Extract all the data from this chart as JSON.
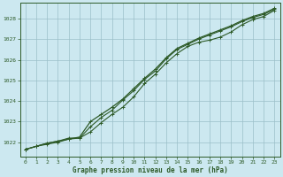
{
  "title": "Graphe pression niveau de la mer (hPa)",
  "background_color": "#cce8f0",
  "plot_bg_color": "#cce8f0",
  "grid_color": "#9bbfc8",
  "line_color": "#2d5a27",
  "marker_color": "#2d5a27",
  "tick_color": "#2d5a27",
  "hours": [
    0,
    1,
    2,
    3,
    4,
    5,
    6,
    7,
    8,
    9,
    10,
    11,
    12,
    13,
    14,
    15,
    16,
    17,
    18,
    19,
    20,
    21,
    22,
    23
  ],
  "line1": [
    1021.65,
    1021.8,
    1021.9,
    1022.0,
    1022.15,
    1022.2,
    1022.5,
    1022.95,
    1023.35,
    1023.7,
    1024.2,
    1024.85,
    1025.3,
    1025.85,
    1026.3,
    1026.65,
    1026.85,
    1026.95,
    1027.1,
    1027.35,
    1027.7,
    1027.95,
    1028.1,
    1028.4
  ],
  "line2": [
    1021.65,
    1021.8,
    1021.95,
    1022.05,
    1022.2,
    1022.2,
    1022.75,
    1023.2,
    1023.55,
    1024.05,
    1024.5,
    1025.05,
    1025.45,
    1026.05,
    1026.5,
    1026.75,
    1027.0,
    1027.2,
    1027.4,
    1027.6,
    1027.85,
    1028.05,
    1028.2,
    1028.45
  ],
  "line3": [
    1021.65,
    1021.8,
    1021.95,
    1022.05,
    1022.15,
    1022.25,
    1023.0,
    1023.35,
    1023.7,
    1024.1,
    1024.6,
    1025.1,
    1025.55,
    1026.1,
    1026.55,
    1026.8,
    1027.05,
    1027.25,
    1027.45,
    1027.65,
    1027.9,
    1028.1,
    1028.25,
    1028.5
  ],
  "ylim": [
    1021.3,
    1028.75
  ],
  "yticks": [
    1022,
    1023,
    1024,
    1025,
    1026,
    1027,
    1028
  ],
  "xlim": [
    -0.5,
    23.5
  ],
  "xticks": [
    0,
    1,
    2,
    3,
    4,
    5,
    6,
    7,
    8,
    9,
    10,
    11,
    12,
    13,
    14,
    15,
    16,
    17,
    18,
    19,
    20,
    21,
    22,
    23
  ]
}
